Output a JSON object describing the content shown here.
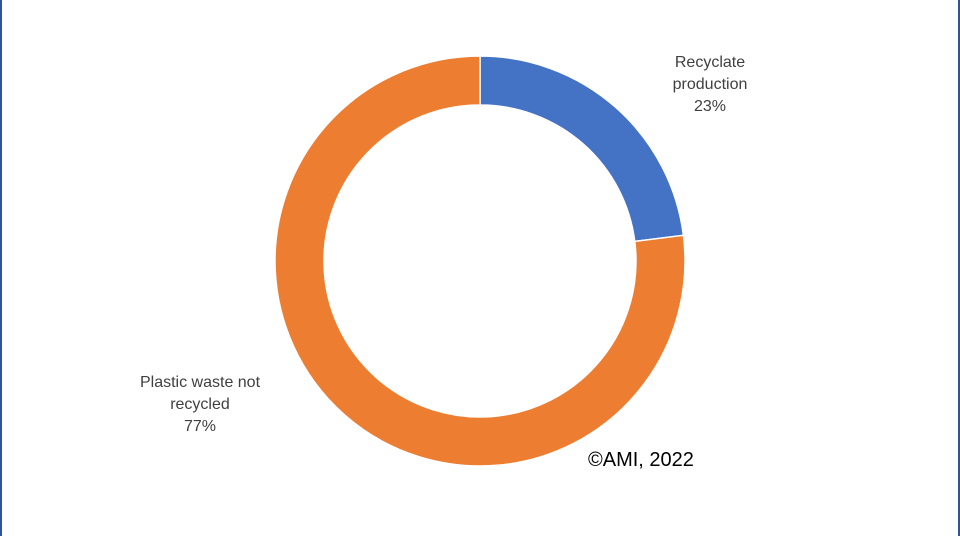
{
  "chart_data": {
    "type": "donut",
    "categories": [
      "Recyclate production",
      "Plastic waste not recycled"
    ],
    "values": [
      23,
      77
    ],
    "value_labels": [
      "23%",
      "77%"
    ],
    "colors": [
      "#4472c4",
      "#ed7d31"
    ],
    "annotation": "©AMI, 2022"
  }
}
